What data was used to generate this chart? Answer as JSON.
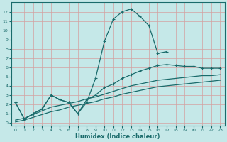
{
  "xlabel": "Humidex (Indice chaleur)",
  "xlim": [
    -0.5,
    23.5
  ],
  "ylim": [
    -0.3,
    13.0
  ],
  "xticks": [
    0,
    1,
    2,
    3,
    4,
    5,
    6,
    7,
    8,
    9,
    10,
    11,
    12,
    13,
    14,
    15,
    16,
    17,
    18,
    19,
    20,
    21,
    22,
    23
  ],
  "yticks": [
    0,
    1,
    2,
    3,
    4,
    5,
    6,
    7,
    8,
    9,
    10,
    11,
    12
  ],
  "bg_color": "#c5e8e8",
  "line_color": "#1a6b6b",
  "grid_color_major": "#d4a0a0",
  "series": {
    "line1_x": [
      0,
      1,
      2,
      3,
      4,
      5,
      6,
      7,
      8,
      9,
      10,
      11,
      12,
      13,
      14,
      15,
      16,
      17
    ],
    "line1_y": [
      2.2,
      0.4,
      1.0,
      1.5,
      3.0,
      2.5,
      2.2,
      1.0,
      2.2,
      4.8,
      8.8,
      11.2,
      12.0,
      12.3,
      11.5,
      10.5,
      7.5,
      7.7
    ],
    "line2_x": [
      0,
      1,
      2,
      3,
      4,
      5,
      6,
      7,
      8,
      9,
      10,
      11,
      12,
      13,
      14,
      15,
      16,
      17,
      18,
      19,
      20,
      21,
      22,
      23
    ],
    "line2_y": [
      2.2,
      0.4,
      1.0,
      1.5,
      3.0,
      2.5,
      2.2,
      1.0,
      2.5,
      3.0,
      3.8,
      4.2,
      4.8,
      5.2,
      5.6,
      5.9,
      6.2,
      6.3,
      6.2,
      6.1,
      6.1,
      5.9,
      5.9,
      5.9
    ],
    "line3_x": [
      0,
      1,
      2,
      3,
      4,
      5,
      6,
      7,
      8,
      9,
      10,
      11,
      12,
      13,
      14,
      15,
      16,
      17,
      18,
      19,
      20,
      21,
      22,
      23
    ],
    "line3_y": [
      0.3,
      0.5,
      0.9,
      1.3,
      1.7,
      1.9,
      2.1,
      2.3,
      2.6,
      2.8,
      3.1,
      3.4,
      3.7,
      4.0,
      4.2,
      4.4,
      4.6,
      4.7,
      4.8,
      4.9,
      5.0,
      5.1,
      5.1,
      5.2
    ],
    "line4_x": [
      0,
      1,
      2,
      3,
      4,
      5,
      6,
      7,
      8,
      9,
      10,
      11,
      12,
      13,
      14,
      15,
      16,
      17,
      18,
      19,
      20,
      21,
      22,
      23
    ],
    "line4_y": [
      0.1,
      0.3,
      0.6,
      0.9,
      1.2,
      1.4,
      1.7,
      1.9,
      2.1,
      2.3,
      2.6,
      2.8,
      3.1,
      3.3,
      3.5,
      3.7,
      3.9,
      4.0,
      4.1,
      4.2,
      4.3,
      4.4,
      4.5,
      4.6
    ]
  }
}
